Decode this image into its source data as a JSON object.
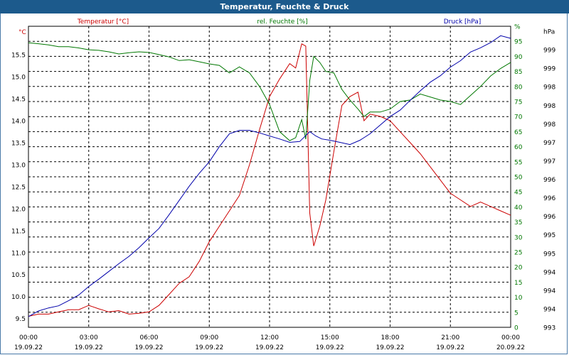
{
  "window": {
    "title": "Temperatur, Feuchte & Druck"
  },
  "chart_data": {
    "type": "line",
    "title": "Temperatur, Feuchte & Druck",
    "grid": true,
    "x_ticks": [
      {
        "time": "00:00",
        "date": "19.09.22"
      },
      {
        "time": "03:00",
        "date": "19.09.22"
      },
      {
        "time": "06:00",
        "date": "19.09.22"
      },
      {
        "time": "09:00",
        "date": "19.09.22"
      },
      {
        "time": "12:00",
        "date": "19.09.22"
      },
      {
        "time": "15:00",
        "date": "19.09.22"
      },
      {
        "time": "18:00",
        "date": "19.09.22"
      },
      {
        "time": "21:00",
        "date": "19.09.22"
      },
      {
        "time": "00:00",
        "date": "20.09.22"
      }
    ],
    "xlim_hours": [
      0,
      24
    ],
    "axes": {
      "temperature": {
        "unit_label": "°C",
        "legend": "Temperatur [°C]",
        "color": "#cc0000",
        "ylim": [
          9.3,
          16.15
        ],
        "ticks": [
          "9.5",
          "10.0",
          "10.5",
          "11.0",
          "11.5",
          "12.0",
          "12.5",
          "13.0",
          "13.5",
          "14.0",
          "14.5",
          "15.0",
          "15.5"
        ]
      },
      "humidity": {
        "unit_label": "%",
        "legend": "rel. Feuchte [%]",
        "color": "#007700",
        "ylim": [
          0,
          100
        ],
        "ticks": [
          "0",
          "5",
          "10",
          "15",
          "20",
          "25",
          "30",
          "35",
          "40",
          "45",
          "50",
          "55",
          "60",
          "65",
          "70",
          "75",
          "80",
          "85",
          "90",
          "95",
          "%"
        ]
      },
      "pressure": {
        "unit_label": "hPa",
        "legend": "Druck [hPa]",
        "color": "#0000aa",
        "ylim": [
          993,
          1000
        ],
        "ticks": [
          "993",
          "994",
          "994",
          "994",
          "995",
          "995",
          "996",
          "996",
          "996",
          "997",
          "997",
          "998",
          "998",
          "998",
          "999",
          "999",
          "hPa"
        ]
      }
    },
    "series": [
      {
        "name": "Temperatur",
        "axis": "temperature",
        "color": "#cc0000",
        "x": [
          0,
          0.5,
          1,
          1.5,
          2,
          2.5,
          3,
          3.5,
          4,
          4.5,
          5,
          5.5,
          6,
          6.5,
          7,
          7.5,
          8,
          8.5,
          9,
          9.5,
          10,
          10.5,
          11,
          11.5,
          12,
          12.5,
          13,
          13.3,
          13.6,
          13.8,
          14,
          14.2,
          14.5,
          14.8,
          15.2,
          15.6,
          16,
          16.4,
          16.7,
          17,
          17.5,
          18,
          18.5,
          19,
          19.5,
          20,
          20.5,
          21,
          21.5,
          22,
          22.5,
          23,
          23.5,
          24
        ],
        "values": [
          9.55,
          9.6,
          9.6,
          9.65,
          9.7,
          9.7,
          9.8,
          9.72,
          9.65,
          9.68,
          9.6,
          9.62,
          9.65,
          9.8,
          10.05,
          10.3,
          10.45,
          10.8,
          11.25,
          11.6,
          11.95,
          12.3,
          13.0,
          13.8,
          14.55,
          14.95,
          15.3,
          15.2,
          15.75,
          15.7,
          11.9,
          11.15,
          11.6,
          12.2,
          13.3,
          14.35,
          14.55,
          14.65,
          14.0,
          14.15,
          14.1,
          14.0,
          13.75,
          13.5,
          13.25,
          12.95,
          12.65,
          12.35,
          12.2,
          12.05,
          12.15,
          12.05,
          11.95,
          11.85
        ]
      },
      {
        "name": "rel. Feuchte",
        "axis": "humidity",
        "color": "#007700",
        "x": [
          0,
          0.5,
          1,
          1.5,
          2,
          2.5,
          3,
          3.5,
          4,
          4.5,
          5,
          5.5,
          6,
          6.5,
          7,
          7.5,
          8,
          8.5,
          9,
          9.5,
          10,
          10.5,
          11,
          11.5,
          12,
          12.5,
          13,
          13.3,
          13.6,
          13.8,
          14,
          14.2,
          14.5,
          14.8,
          15.2,
          15.6,
          16,
          16.4,
          16.7,
          17,
          17.5,
          18,
          18.5,
          19,
          19.5,
          20,
          20.5,
          21,
          21.5,
          22,
          22.5,
          23,
          23.5,
          24
        ],
        "values": [
          94.5,
          94.2,
          93.8,
          93.2,
          93.2,
          92.8,
          92.2,
          92.0,
          91.5,
          90.8,
          91.2,
          91.5,
          91.3,
          90.6,
          89.8,
          88.6,
          88.9,
          88.2,
          87.5,
          87.0,
          84.5,
          86.5,
          84.5,
          80.0,
          74.0,
          65.0,
          62.0,
          63.0,
          69.0,
          62.5,
          82.0,
          90.0,
          88.0,
          85.0,
          84.5,
          79.0,
          75.5,
          72.5,
          70.0,
          71.5,
          71.5,
          72.5,
          75.0,
          75.5,
          77.5,
          76.5,
          75.5,
          75.0,
          74.0,
          77.0,
          80.0,
          83.5,
          86.0,
          88.0
        ]
      },
      {
        "name": "Druck",
        "axis": "pressure",
        "color": "#0000aa",
        "x": [
          0,
          0.5,
          1,
          1.5,
          2,
          2.5,
          3,
          3.5,
          4,
          4.5,
          5,
          5.5,
          6,
          6.5,
          7,
          7.5,
          8,
          8.5,
          9,
          9.5,
          10,
          10.5,
          11,
          11.5,
          12,
          12.5,
          13,
          13.5,
          14,
          14.3,
          14.6,
          15,
          15.5,
          16,
          16.5,
          17,
          17.5,
          18,
          18.5,
          19,
          19.5,
          20,
          20.5,
          21,
          21.5,
          22,
          22.5,
          23,
          23.5,
          24
        ],
        "values": [
          993.25,
          993.38,
          993.45,
          993.5,
          993.62,
          993.75,
          993.95,
          994.12,
          994.3,
          994.48,
          994.65,
          994.85,
          995.08,
          995.3,
          995.62,
          995.95,
          996.28,
          996.58,
          996.85,
          997.2,
          997.5,
          997.58,
          997.58,
          997.52,
          997.45,
          997.38,
          997.3,
          997.32,
          997.55,
          997.45,
          997.38,
          997.35,
          997.3,
          997.25,
          997.35,
          997.5,
          997.7,
          997.9,
          998.05,
          998.28,
          998.5,
          998.7,
          998.85,
          999.05,
          999.2,
          999.4,
          999.5,
          999.62,
          999.78,
          999.72
        ]
      }
    ]
  }
}
